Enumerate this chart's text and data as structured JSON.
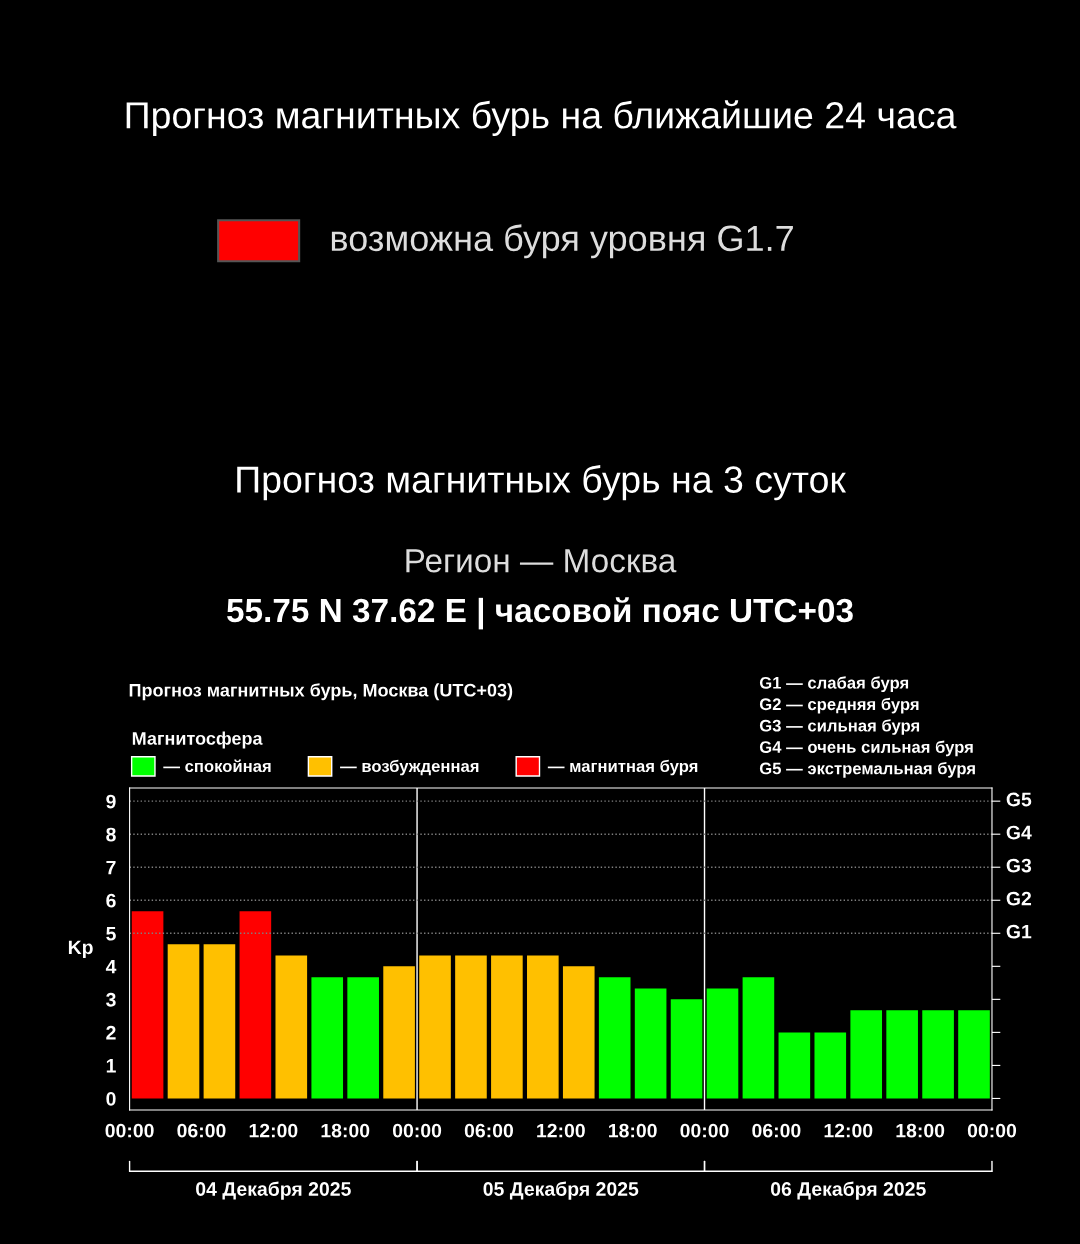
{
  "chart_data": [
    {
      "type": "other",
      "title": "Прогноз магнитных бурь на ближайшие 24 часа",
      "annotations": [
        "возможна буря уровня G1.7"
      ],
      "colors": [
        "#ff0000"
      ]
    },
    {
      "type": "bar",
      "title": "Прогноз магнитных бурь на 3 суток",
      "subtitle": "Регион — Москва",
      "annotations": [
        "55.75 N 37.62 E | часовой пояс UTC+03",
        "Прогноз магнитных бурь, Москва (UTC+03)",
        "G1 — слабая буря",
        "G2 — средняя буря",
        "G3 — сильная буря",
        "G4 — очень сильная буря",
        "G5 — экстремальная буря",
        "04 Декабря 2025",
        "05 Декабря 2025",
        "06 Декабря 2025"
      ],
      "ylabel": "Kp",
      "legend_title": "Магнитосфера",
      "legend": "top left",
      "x": [
        "2025-12-04T01:30",
        "2025-12-04T04:30",
        "2025-12-04T07:30",
        "2025-12-04T10:30",
        "2025-12-04T13:30",
        "2025-12-04T16:30",
        "2025-12-04T19:30",
        "2025-12-04T22:30",
        "2025-12-05T01:30",
        "2025-12-05T04:30",
        "2025-12-05T07:30",
        "2025-12-05T10:30",
        "2025-12-05T13:30",
        "2025-12-05T16:30",
        "2025-12-05T19:30",
        "2025-12-05T22:30",
        "2025-12-06T01:30",
        "2025-12-06T04:30",
        "2025-12-06T07:30",
        "2025-12-06T10:30",
        "2025-12-06T13:30",
        "2025-12-06T16:30",
        "2025-12-06T19:30",
        "2025-12-06T22:30"
      ],
      "series": [
        {
          "name": "— спокойная",
          "color": "#00ff00",
          "values": [
            null,
            null,
            null,
            null,
            null,
            3.67,
            3.67,
            null,
            null,
            null,
            null,
            null,
            null,
            3.67,
            3.33,
            3.0,
            3.33,
            3.67,
            2.0,
            2.0,
            2.67,
            2.67,
            2.67,
            2.67
          ]
        },
        {
          "name": "— возбужденная",
          "color": "#ffc000",
          "values": [
            null,
            4.67,
            4.67,
            null,
            4.33,
            null,
            null,
            4.0,
            4.33,
            4.33,
            4.33,
            4.33,
            4.0,
            null,
            null,
            null,
            null,
            null,
            null,
            null,
            null,
            null,
            null,
            null
          ]
        },
        {
          "name": "— магнитная буря",
          "color": "#ff0000",
          "values": [
            5.67,
            null,
            null,
            5.67,
            null,
            null,
            null,
            null,
            null,
            null,
            null,
            null,
            null,
            null,
            null,
            null,
            null,
            null,
            null,
            null,
            null,
            null,
            null,
            null
          ]
        }
      ],
      "xlim": [
        "2025-12-04T00:00",
        "2025-12-07T00:00"
      ],
      "xticks": [
        {
          "value": "2025-12-04T00:00",
          "label": "00:00"
        },
        {
          "value": "2025-12-04T06:00",
          "label": "06:00"
        },
        {
          "value": "2025-12-04T12:00",
          "label": "12:00"
        },
        {
          "value": "2025-12-04T18:00",
          "label": "18:00"
        },
        {
          "value": "2025-12-05T00:00",
          "label": "00:00"
        },
        {
          "value": "2025-12-05T06:00",
          "label": "06:00"
        },
        {
          "value": "2025-12-05T12:00",
          "label": "12:00"
        },
        {
          "value": "2025-12-05T18:00",
          "label": "18:00"
        },
        {
          "value": "2025-12-06T00:00",
          "label": "00:00"
        },
        {
          "value": "2025-12-06T06:00",
          "label": "06:00"
        },
        {
          "value": "2025-12-06T12:00",
          "label": "12:00"
        },
        {
          "value": "2025-12-06T18:00",
          "label": "18:00"
        },
        {
          "value": "2025-12-07T00:00",
          "label": "00:00"
        }
      ],
      "ylim": [
        -0.35,
        9.4
      ],
      "yticks": [
        0,
        1,
        2,
        3,
        4,
        5,
        6,
        7,
        8,
        9
      ],
      "ref_lines": [
        {
          "axis": "x",
          "value": "2025-12-05T00:00",
          "color": "#ffffff",
          "line_style": "solid"
        },
        {
          "axis": "x",
          "value": "2025-12-06T00:00",
          "color": "#ffffff",
          "line_style": "solid"
        },
        {
          "axis": "y",
          "value": 5,
          "label": "G1",
          "color": "#808080",
          "line_style": "dotted"
        },
        {
          "axis": "y",
          "value": 6,
          "label": "G2",
          "color": "#808080",
          "line_style": "dotted"
        },
        {
          "axis": "y",
          "value": 7,
          "label": "G3",
          "color": "#808080",
          "line_style": "dotted"
        },
        {
          "axis": "y",
          "value": 8,
          "label": "G4",
          "color": "#808080",
          "line_style": "dotted"
        },
        {
          "axis": "y",
          "value": 9,
          "label": "G5",
          "color": "#808080",
          "line_style": "dotted"
        }
      ]
    }
  ]
}
